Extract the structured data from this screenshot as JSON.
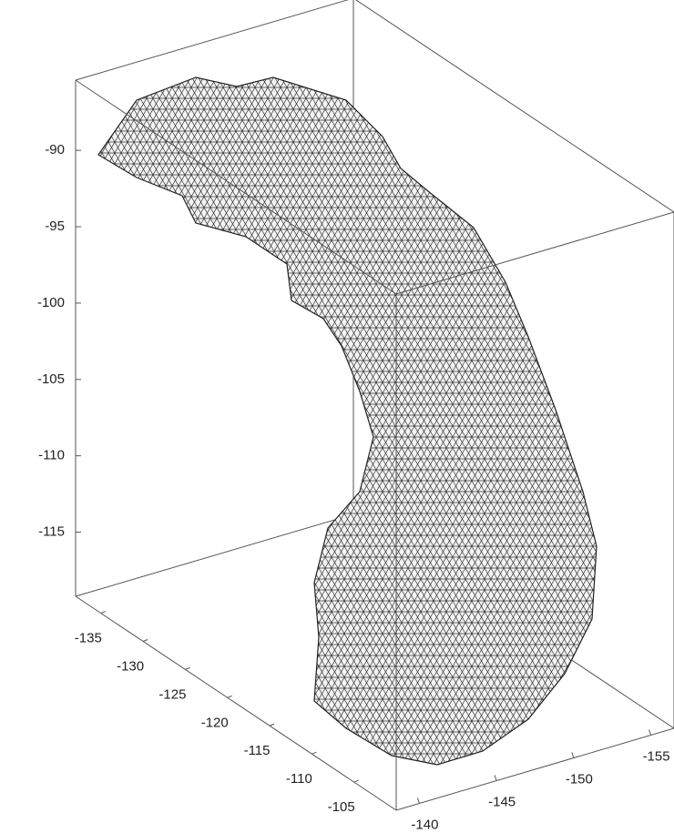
{
  "chart_data": {
    "type": "mesh3d",
    "xlim": [
      -138,
      -100
    ],
    "xticks": [
      -135,
      -130,
      -125,
      -120,
      -115,
      -110,
      -105
    ],
    "ylim": [
      -138.5,
      -156.5
    ],
    "yticks": [
      -140,
      -145,
      -150,
      -155
    ],
    "zlim": [
      -119.2,
      -85.4
    ],
    "zticks": [
      -115,
      -110,
      -105,
      -100,
      -95,
      -90
    ],
    "color": "#ffffff",
    "edge_color": "#333333"
  }
}
